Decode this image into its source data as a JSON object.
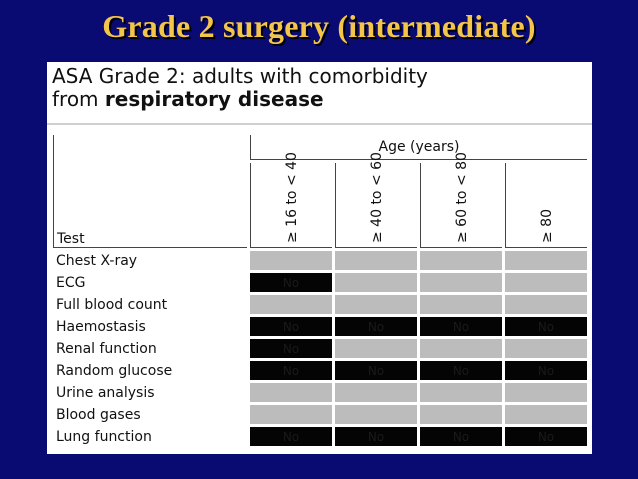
{
  "slide_title": "Grade 2 surgery (intermediate)",
  "panel": {
    "heading_part1": "ASA Grade 2: adults with comorbidity",
    "heading_part2": "from ",
    "heading_bold": "respiratory disease"
  },
  "table": {
    "test_header": "Test",
    "age_header": "Age (years)",
    "age_columns": [
      "≥ 16 to < 40",
      "≥ 40 to < 60",
      "≥ 60 to < 80",
      "≥ 80"
    ],
    "rows": [
      {
        "label": "Chest X-ray",
        "cells": [
          {
            "shade": "grey",
            "text": ""
          },
          {
            "shade": "grey",
            "text": ""
          },
          {
            "shade": "grey",
            "text": ""
          },
          {
            "shade": "grey",
            "text": ""
          }
        ]
      },
      {
        "label": "ECG",
        "cells": [
          {
            "shade": "black",
            "text": "No"
          },
          {
            "shade": "grey",
            "text": ""
          },
          {
            "shade": "grey",
            "text": ""
          },
          {
            "shade": "grey",
            "text": ""
          }
        ]
      },
      {
        "label": "Full blood count",
        "cells": [
          {
            "shade": "grey",
            "text": ""
          },
          {
            "shade": "grey",
            "text": ""
          },
          {
            "shade": "grey",
            "text": ""
          },
          {
            "shade": "grey",
            "text": ""
          }
        ]
      },
      {
        "label": "Haemostasis",
        "cells": [
          {
            "shade": "black",
            "text": "No"
          },
          {
            "shade": "black",
            "text": "No"
          },
          {
            "shade": "black",
            "text": "No"
          },
          {
            "shade": "black",
            "text": "No"
          }
        ]
      },
      {
        "label": "Renal function",
        "cells": [
          {
            "shade": "black",
            "text": "No"
          },
          {
            "shade": "grey",
            "text": ""
          },
          {
            "shade": "grey",
            "text": ""
          },
          {
            "shade": "grey",
            "text": ""
          }
        ]
      },
      {
        "label": "Random glucose",
        "cells": [
          {
            "shade": "black",
            "text": "No"
          },
          {
            "shade": "black",
            "text": "No"
          },
          {
            "shade": "black",
            "text": "No"
          },
          {
            "shade": "black",
            "text": "No"
          }
        ]
      },
      {
        "label": "Urine analysis",
        "cells": [
          {
            "shade": "grey",
            "text": ""
          },
          {
            "shade": "grey",
            "text": ""
          },
          {
            "shade": "grey",
            "text": ""
          },
          {
            "shade": "grey",
            "text": ""
          }
        ]
      },
      {
        "label": "Blood gases",
        "cells": [
          {
            "shade": "grey",
            "text": ""
          },
          {
            "shade": "grey",
            "text": ""
          },
          {
            "shade": "grey",
            "text": ""
          },
          {
            "shade": "grey",
            "text": ""
          }
        ]
      },
      {
        "label": "Lung function",
        "cells": [
          {
            "shade": "black",
            "text": "No"
          },
          {
            "shade": "black",
            "text": "No"
          },
          {
            "shade": "black",
            "text": "No"
          },
          {
            "shade": "black",
            "text": "No"
          }
        ]
      }
    ]
  },
  "colors": {
    "background": "#0a0a73",
    "title": "#f3c54a",
    "grey_cell": "#bcbcbc",
    "black_cell": "#040404"
  }
}
